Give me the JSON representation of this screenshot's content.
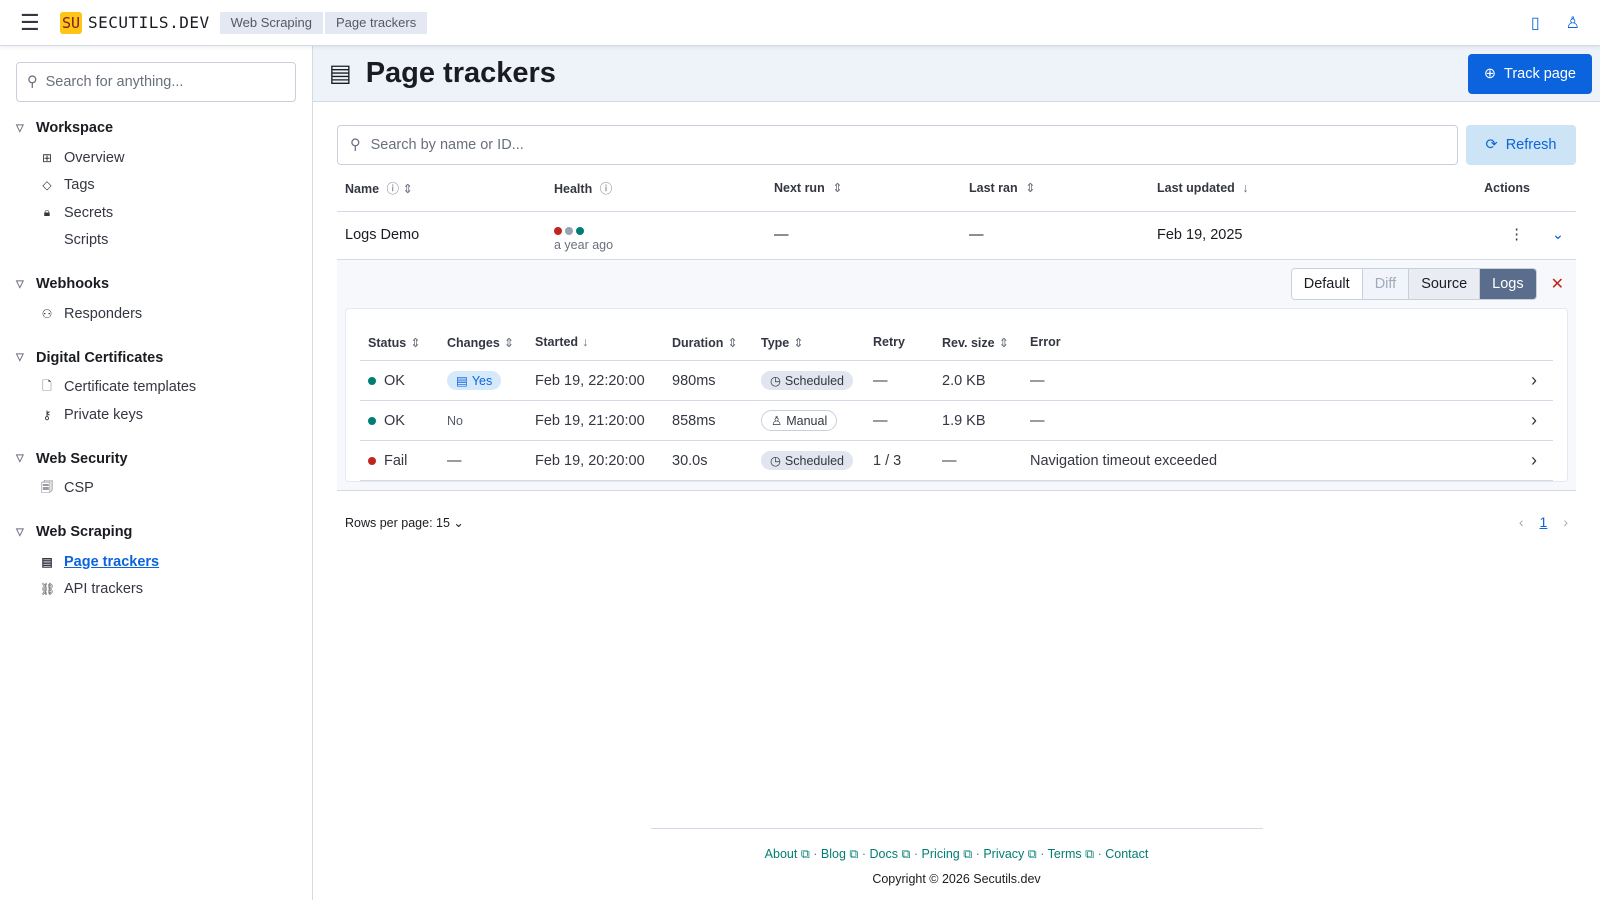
{
  "header": {
    "brand_logo": "SU",
    "brand": "SECUTILS.DEV",
    "breadcrumbs": [
      "Web Scraping",
      "Page trackers"
    ]
  },
  "sidebar": {
    "search_placeholder": "Search for anything...",
    "groups": [
      {
        "title": "Workspace",
        "items": [
          {
            "label": "Overview",
            "icon": "grid-icon"
          },
          {
            "label": "Tags",
            "icon": "tag-icon"
          },
          {
            "label": "Secrets",
            "icon": "lock-icon"
          },
          {
            "label": "Scripts",
            "icon": "code-icon"
          }
        ]
      },
      {
        "title": "Webhooks",
        "items": [
          {
            "label": "Responders",
            "icon": "webhook-icon"
          }
        ]
      },
      {
        "title": "Digital Certificates",
        "items": [
          {
            "label": "Certificate templates",
            "icon": "document-icon"
          },
          {
            "label": "Private keys",
            "icon": "key-icon"
          }
        ]
      },
      {
        "title": "Web Security",
        "items": [
          {
            "label": "CSP",
            "icon": "documents-icon"
          }
        ]
      },
      {
        "title": "Web Scraping",
        "items": [
          {
            "label": "Page trackers",
            "icon": "page-icon",
            "active": true
          },
          {
            "label": "API trackers",
            "icon": "api-icon"
          }
        ]
      }
    ]
  },
  "page": {
    "title": "Page trackers",
    "track_button": "Track page",
    "search_placeholder": "Search by name or ID...",
    "refresh": "Refresh"
  },
  "table": {
    "headers": [
      "Name",
      "Health",
      "Next run",
      "Last ran",
      "Last updated",
      "Actions"
    ],
    "rows": [
      {
        "name": "Logs Demo",
        "health": [
          "#bd271e",
          "#98a2b3",
          "#017d73"
        ],
        "health_time": "a year ago",
        "next_run": "—",
        "last_ran": "—",
        "last_updated": "Feb 19, 2025"
      }
    ]
  },
  "expanded": {
    "views": [
      "Default",
      "Diff",
      "Source",
      "Logs"
    ],
    "active_view": "Logs",
    "headers": [
      "Status",
      "Changes",
      "Started",
      "Duration",
      "Type",
      "Retry",
      "Rev. size",
      "Error"
    ],
    "rows": [
      {
        "status": "OK",
        "status_color": "#017d73",
        "changes": "Yes",
        "started": "Feb 19, 22:20:00",
        "duration": "980ms",
        "type": "Scheduled",
        "retry": "—",
        "size": "2.0 KB",
        "error": "—"
      },
      {
        "status": "OK",
        "status_color": "#017d73",
        "changes": "No",
        "started": "Feb 19, 21:20:00",
        "duration": "858ms",
        "type": "Manual",
        "retry": "—",
        "size": "1.9 KB",
        "error": "—"
      },
      {
        "status": "Fail",
        "status_color": "#bd271e",
        "changes": "—",
        "started": "Feb 19, 20:20:00",
        "duration": "30.0s",
        "type": "Scheduled",
        "retry": "1 / 3",
        "size": "—",
        "error": "Navigation timeout exceeded"
      }
    ]
  },
  "pagination": {
    "rows_per_page": "Rows per page: 15",
    "page": "1"
  },
  "footer": {
    "links": [
      "About",
      "Blog",
      "Docs",
      "Pricing",
      "Privacy",
      "Terms",
      "Contact"
    ],
    "copyright": "Copyright © 2026 Secutils.dev"
  }
}
